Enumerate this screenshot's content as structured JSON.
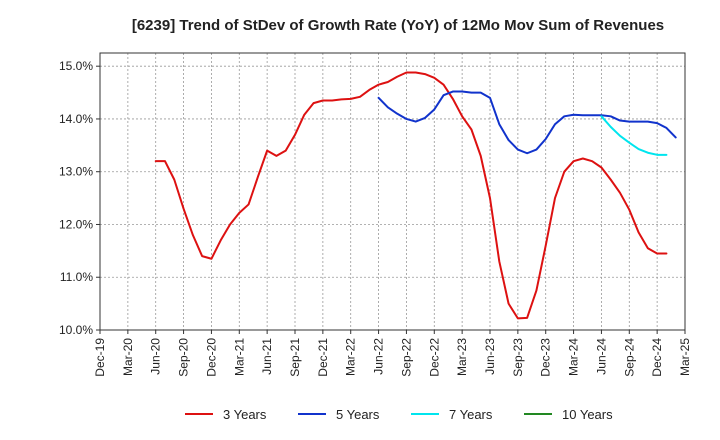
{
  "chart_data": {
    "type": "line",
    "title": "[6239]  Trend of StDev of Growth Rate (YoY) of 12Mo Mov Sum of Revenues",
    "xlabel": "",
    "ylabel": "",
    "ylim": [
      10.0,
      15.25
    ],
    "y_ticks": [
      10.0,
      11.0,
      12.0,
      13.0,
      14.0,
      15.0
    ],
    "y_tick_labels": [
      "10.0%",
      "11.0%",
      "12.0%",
      "13.0%",
      "14.0%",
      "15.0%"
    ],
    "x_tick_labels": [
      "Dec-19",
      "Mar-20",
      "Jun-20",
      "Sep-20",
      "Dec-20",
      "Mar-21",
      "Jun-21",
      "Sep-21",
      "Dec-21",
      "Mar-22",
      "Jun-22",
      "Sep-22",
      "Dec-22",
      "Mar-23",
      "Jun-23",
      "Sep-23",
      "Dec-23",
      "Mar-24",
      "Jun-24",
      "Sep-24",
      "Dec-24",
      "Mar-25"
    ],
    "x_start_month": "Dec-19",
    "legend_position": "bottom",
    "series": [
      {
        "name": "3 Years",
        "color": "#dd1111",
        "start_index": 6,
        "values": [
          13.2,
          13.2,
          12.85,
          12.3,
          11.8,
          11.4,
          11.35,
          11.7,
          12.0,
          12.22,
          12.38,
          12.9,
          13.4,
          13.3,
          13.4,
          13.7,
          14.08,
          14.3,
          14.35,
          14.35,
          14.37,
          14.38,
          14.42,
          14.55,
          14.65,
          14.7,
          14.8,
          14.88,
          14.88,
          14.85,
          14.78,
          14.65,
          14.38,
          14.05,
          13.8,
          13.3,
          12.5,
          11.3,
          10.5,
          10.22,
          10.23,
          10.75,
          11.6,
          12.5,
          13.0,
          13.2,
          13.25,
          13.2,
          13.08,
          12.85,
          12.6,
          12.28,
          11.85,
          11.55,
          11.45,
          11.45
        ]
      },
      {
        "name": "5 Years",
        "color": "#1133cc",
        "start_index": 30,
        "values": [
          14.4,
          14.22,
          14.1,
          14.0,
          13.95,
          14.02,
          14.18,
          14.45,
          14.52,
          14.52,
          14.5,
          14.5,
          14.4,
          13.9,
          13.6,
          13.42,
          13.35,
          13.42,
          13.62,
          13.9,
          14.05,
          14.08,
          14.07,
          14.07,
          14.07,
          14.05,
          13.97,
          13.95,
          13.95,
          13.95,
          13.92,
          13.83,
          13.65
        ]
      },
      {
        "name": "7 Years",
        "color": "#00e5ee",
        "start_index": 54,
        "values": [
          14.05,
          13.85,
          13.68,
          13.55,
          13.43,
          13.36,
          13.32,
          13.32
        ]
      },
      {
        "name": "10 Years",
        "color": "#228822",
        "start_index": 0,
        "values": []
      }
    ]
  }
}
